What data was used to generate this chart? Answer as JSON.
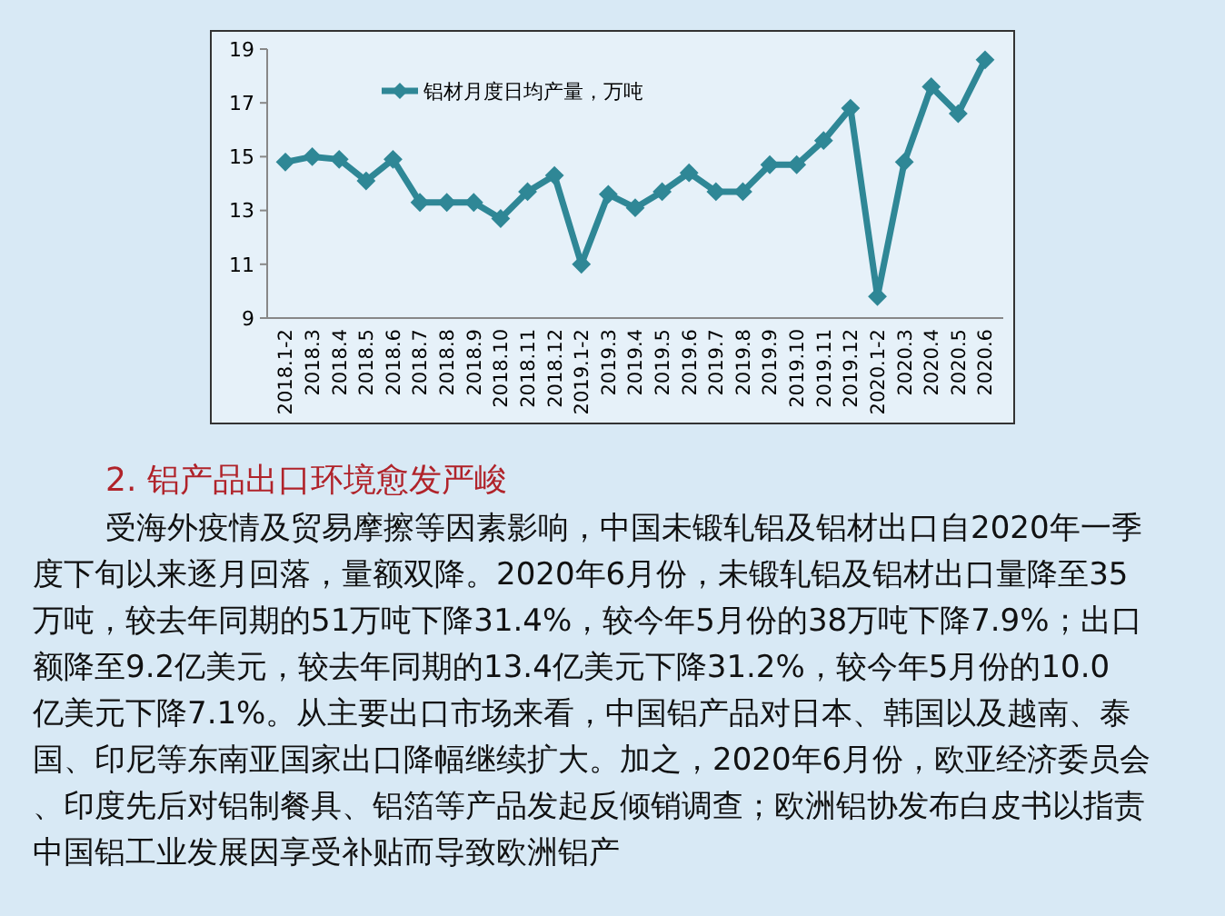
{
  "chart_data": {
    "type": "line",
    "categories": [
      "2018.1-2",
      "2018.3",
      "2018.4",
      "2018.5",
      "2018.6",
      "2018.7",
      "2018.8",
      "2018.9",
      "2018.10",
      "2018.11",
      "2018.12",
      "2019.1-2",
      "2019.3",
      "2019.4",
      "2019.5",
      "2019.6",
      "2019.7",
      "2019.8",
      "2019.9",
      "2019.10",
      "2019.11",
      "2019.12",
      "2020.1-2",
      "2020.3",
      "2020.4",
      "2020.5",
      "2020.6"
    ],
    "series": [
      {
        "name": "铝材月度日均产量，万吨",
        "color": "#2f8796",
        "values": [
          14.8,
          15.0,
          14.9,
          14.1,
          14.9,
          13.3,
          13.3,
          13.3,
          12.7,
          13.7,
          14.3,
          11.0,
          13.6,
          13.1,
          13.7,
          14.4,
          13.7,
          13.7,
          14.7,
          14.7,
          15.6,
          16.8,
          9.8,
          14.8,
          17.6,
          16.6,
          18.6
        ]
      }
    ],
    "ylim": [
      9,
      19
    ],
    "yticks": [
      9,
      11,
      13,
      15,
      17,
      19
    ],
    "grid": false,
    "legend": "top left",
    "marker": "diamond",
    "line_style": "solid",
    "annotations": [
      "2. 铝产品出口环境愈发严峻",
      "受海外疫情及贸易摩擦等因素影响，中国未锻轧铝及铝材出口自2020年一季度下旬以来逐月回落，量额双降。2020年6月份，未锻轧铝及铝材出口量降至35万吨，较去年同期的51万吨下降31.4%，较今年5月份的38万吨下降7.9%；出口额降至9.2亿美元，较去年同期的13.4亿美元下降31.2%，较今年5月份的10.0亿美元下降7.1%。从主要出口市场来看，中国铝产品对日本、韩国以及越南、泰国、印尼等东南亚国家出口降幅继续扩大。加之，2020年6月份，欧亚经济委员会、印度先后对铝制餐具、铝箔等产品发起反倾销调查；欧洲铝协发布白皮书以指责中国铝工业发展因享受补贴而导致欧洲铝产"
    ]
  }
}
